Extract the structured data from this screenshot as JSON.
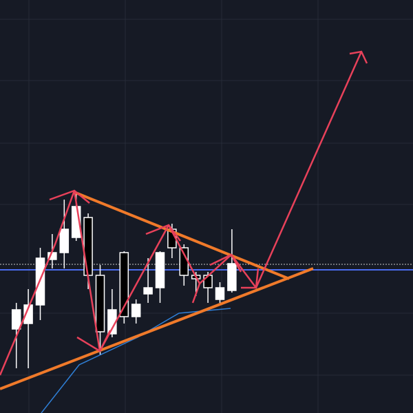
{
  "chart_data": {
    "type": "candlestick",
    "categories": [
      null,
      null,
      null,
      null,
      null,
      null,
      null,
      null,
      null,
      null,
      null,
      null,
      null,
      null,
      null,
      null,
      null,
      null,
      null
    ],
    "open": [
      122,
      130,
      157,
      223,
      233,
      255,
      284,
      200,
      115,
      233,
      140,
      173,
      182,
      267,
      240,
      200,
      200,
      165,
      178
    ],
    "high": [
      160,
      180,
      240,
      260,
      310,
      318,
      290,
      215,
      180,
      235,
      165,
      225,
      235,
      275,
      245,
      205,
      205,
      190,
      267
    ],
    "low": [
      65,
      65,
      135,
      210,
      210,
      250,
      180,
      85,
      110,
      130,
      130,
      160,
      160,
      225,
      185,
      170,
      160,
      160,
      175
    ],
    "close": [
      150,
      157,
      225,
      233,
      267,
      300,
      200,
      118,
      150,
      140,
      158,
      182,
      233,
      240,
      200,
      195,
      182,
      182,
      217
    ],
    "up_color": "#ffffff",
    "down_color": "#000000",
    "ylim": [
      0,
      600
    ]
  }
}
